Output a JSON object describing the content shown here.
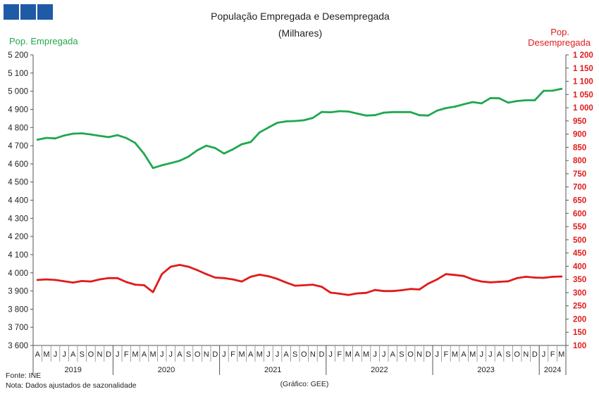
{
  "chart_data": {
    "type": "line",
    "title": "População  Empregada  e Desempregada",
    "subtitle": "(Milhares)",
    "y_left_label": "Pop. Empregada",
    "y_right_label_lines": [
      "Pop.",
      "Desempregada"
    ],
    "y_left_lim": [
      3600,
      5200
    ],
    "y_right_lim": [
      100,
      1200
    ],
    "y_left_ticks": [
      "3 600",
      "3 700",
      "3 800",
      "3 900",
      "4 000",
      "4 100",
      "4 200",
      "4 300",
      "4 400",
      "4 500",
      "4 600",
      "4 700",
      "4 800",
      "4 900",
      "5 000",
      "5 100",
      "5 200"
    ],
    "y_right_ticks": [
      "100",
      "150",
      "200",
      "250",
      "300",
      "350",
      "400",
      "450",
      "500",
      "550",
      "600",
      "650",
      "700",
      "750",
      "800",
      "850",
      "900",
      "950",
      "1 000",
      "1 050",
      "1 100",
      "1 150",
      "1 200"
    ],
    "months": [
      "A",
      "M",
      "J",
      "J",
      "A",
      "S",
      "O",
      "N",
      "D",
      "J",
      "F",
      "M",
      "A",
      "M",
      "J",
      "J",
      "A",
      "S",
      "O",
      "N",
      "D",
      "J",
      "F",
      "M",
      "A",
      "M",
      "J",
      "J",
      "A",
      "S",
      "O",
      "N",
      "D",
      "J",
      "F",
      "M",
      "A",
      "M",
      "J",
      "J",
      "A",
      "S",
      "O",
      "N",
      "D",
      "J",
      "F",
      "M",
      "A",
      "M",
      "J",
      "J",
      "A",
      "S",
      "O",
      "N",
      "D",
      "J",
      "F",
      "M"
    ],
    "years": [
      {
        "label": "2019",
        "start": 0,
        "end": 8
      },
      {
        "label": "2020",
        "start": 9,
        "end": 20
      },
      {
        "label": "2021",
        "start": 21,
        "end": 32
      },
      {
        "label": "2022",
        "start": 33,
        "end": 44
      },
      {
        "label": "2023",
        "start": 45,
        "end": 56
      },
      {
        "label": "2024",
        "start": 57,
        "end": 59
      }
    ],
    "series": [
      {
        "name": "Pop. Empregada",
        "axis": "left",
        "color": "#1fa84f",
        "values": [
          4733,
          4743,
          4740,
          4756,
          4766,
          4768,
          4762,
          4754,
          4747,
          4758,
          4742,
          4715,
          4655,
          4577,
          4592,
          4604,
          4617,
          4640,
          4675,
          4700,
          4687,
          4657,
          4680,
          4708,
          4720,
          4773,
          4800,
          4826,
          4834,
          4836,
          4840,
          4853,
          4886,
          4884,
          4890,
          4888,
          4877,
          4866,
          4868,
          4882,
          4885,
          4885,
          4885,
          4868,
          4866,
          4893,
          4907,
          4915,
          4928,
          4940,
          4933,
          4962,
          4961,
          4937,
          4946,
          4950,
          4950,
          5002,
          5003,
          5013
        ]
      },
      {
        "name": "Pop. Desempregada",
        "axis": "right",
        "color": "#e01b1b",
        "values": [
          348,
          350,
          348,
          343,
          338,
          344,
          342,
          350,
          355,
          355,
          340,
          330,
          328,
          302,
          370,
          398,
          405,
          398,
          385,
          370,
          357,
          355,
          350,
          342,
          360,
          368,
          362,
          352,
          338,
          326,
          328,
          330,
          322,
          300,
          296,
          291,
          297,
          299,
          310,
          306,
          306,
          309,
          314,
          312,
          334,
          350,
          370,
          367,
          363,
          350,
          342,
          339,
          341,
          343,
          355,
          360,
          357,
          356,
          360,
          361
        ]
      }
    ]
  },
  "footer": {
    "source": "Fonte: INE",
    "note": "Nota:  Dados ajustados  de sazonalidade",
    "credit": "(Gráfico: GEE)"
  }
}
